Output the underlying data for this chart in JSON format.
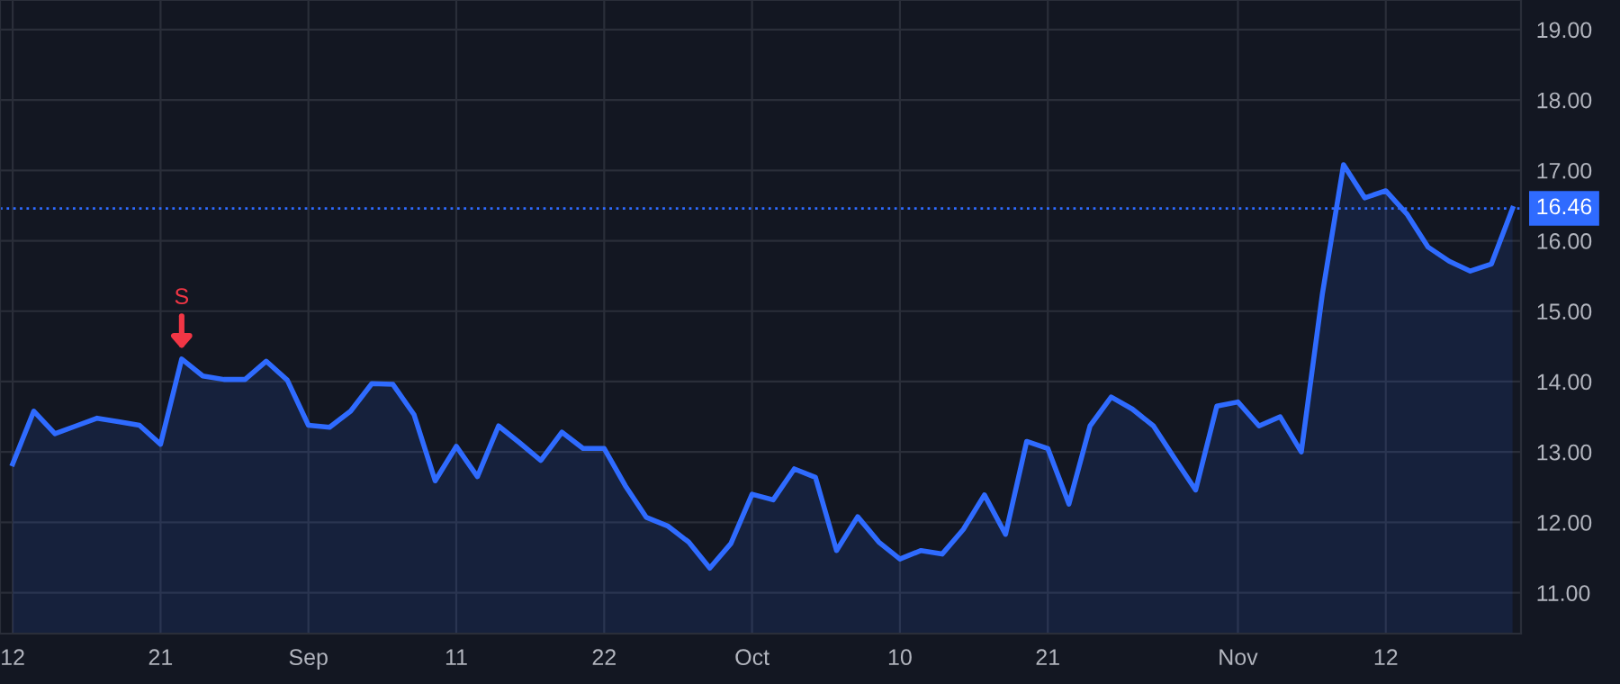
{
  "chart_data": {
    "type": "area",
    "color": "#2f6bff",
    "categories": [
      "12",
      null,
      null,
      null,
      null,
      null,
      null,
      "21",
      null,
      null,
      null,
      null,
      null,
      null,
      "Sep",
      null,
      null,
      null,
      null,
      null,
      null,
      "11",
      null,
      null,
      null,
      null,
      null,
      null,
      "22",
      null,
      null,
      null,
      null,
      null,
      null,
      "Oct",
      null,
      null,
      null,
      null,
      null,
      null,
      "10",
      null,
      null,
      null,
      null,
      null,
      null,
      "21",
      null,
      null,
      null,
      null,
      null,
      null,
      null,
      null,
      "Nov",
      null,
      null,
      null,
      null,
      null,
      null,
      "12",
      null,
      null,
      null,
      null,
      null,
      null
    ],
    "values": [
      12.83,
      13.58,
      13.26,
      13.37,
      13.48,
      13.43,
      13.38,
      13.11,
      14.32,
      14.08,
      14.03,
      14.03,
      14.29,
      14.02,
      13.38,
      13.35,
      13.58,
      13.97,
      13.96,
      13.53,
      12.59,
      13.08,
      12.65,
      13.37,
      13.13,
      12.88,
      13.28,
      13.05,
      13.05,
      12.52,
      12.07,
      11.95,
      11.72,
      11.35,
      11.7,
      12.4,
      12.32,
      12.76,
      12.64,
      11.6,
      12.08,
      11.72,
      11.48,
      11.6,
      11.55,
      11.9,
      12.39,
      11.83,
      13.15,
      13.05,
      12.26,
      13.37,
      13.78,
      13.61,
      13.37,
      12.91,
      12.46,
      13.65,
      13.71,
      13.37,
      13.5,
      13.0,
      15.25,
      17.08,
      16.61,
      16.71,
      16.38,
      15.91,
      15.71,
      15.57,
      15.67,
      16.46
    ],
    "ylim": [
      10.42,
      19.42
    ],
    "yticks": [
      {
        "value": 11,
        "label": "11.00"
      },
      {
        "value": 12,
        "label": "12.00"
      },
      {
        "value": 13,
        "label": "13.00"
      },
      {
        "value": 14,
        "label": "14.00"
      },
      {
        "value": 15,
        "label": "15.00"
      },
      {
        "value": 16,
        "label": "16.00"
      },
      {
        "value": 17,
        "label": "17.00"
      },
      {
        "value": 18,
        "label": "18.00"
      },
      {
        "value": 19,
        "label": "19.00"
      }
    ],
    "ref_lines": [
      {
        "axis": "y",
        "value": 16.46,
        "label": "16.46",
        "color": "#2f6bff",
        "line_style": "dotted"
      }
    ],
    "annotations": [
      {
        "text": "S",
        "y": 14.32
      }
    ],
    "grid": true,
    "marker": "none",
    "line_style": "solid"
  }
}
